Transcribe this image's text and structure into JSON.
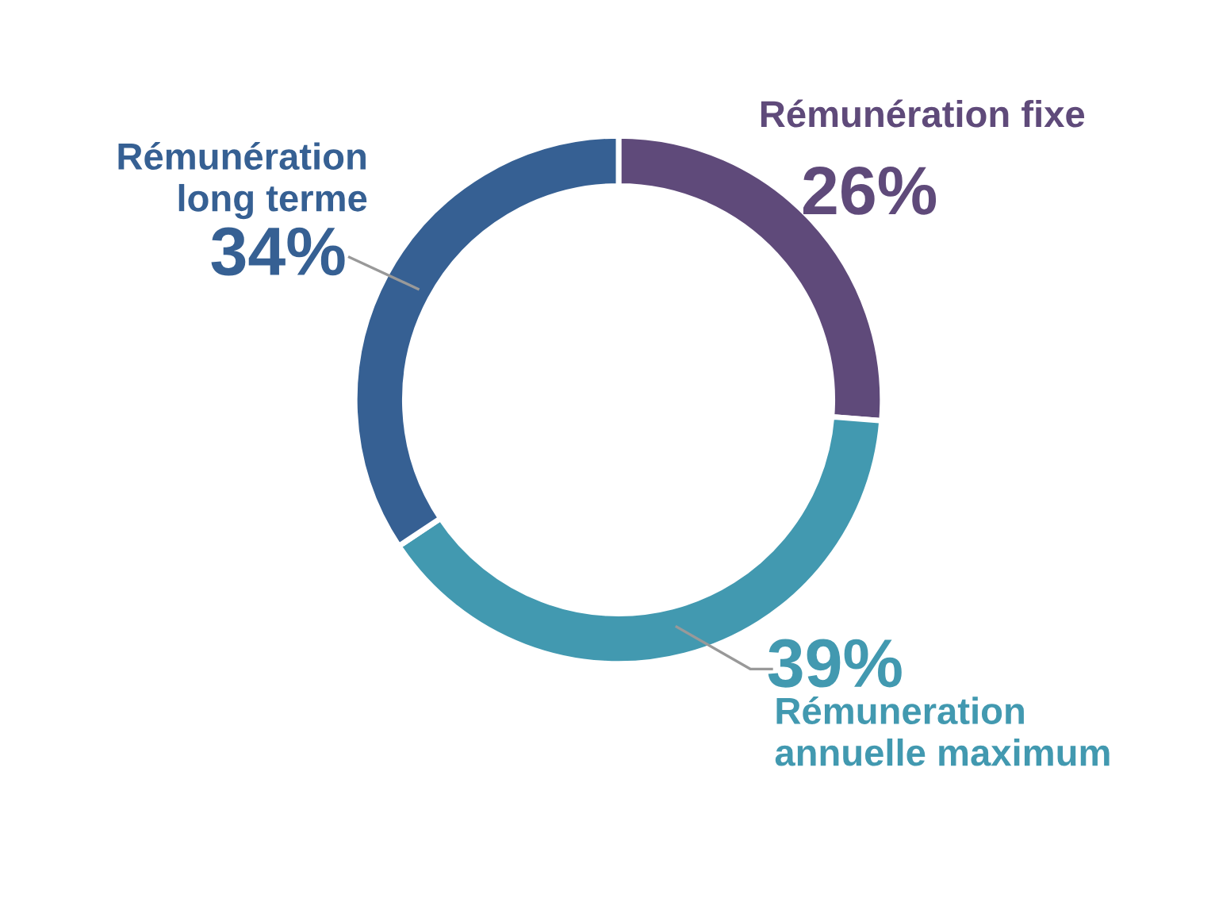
{
  "chart_data": {
    "type": "donut",
    "categories": [
      "Rémunération fixe",
      "Rémuneration\nannuelle maximum",
      "Rémunération\nlong terme"
    ],
    "values": [
      26,
      39,
      34
    ],
    "value_labels": [
      "26%",
      "39%",
      "34%"
    ],
    "colors": [
      "#5f4a7a",
      "#4299b0",
      "#366093"
    ],
    "legend": false
  }
}
